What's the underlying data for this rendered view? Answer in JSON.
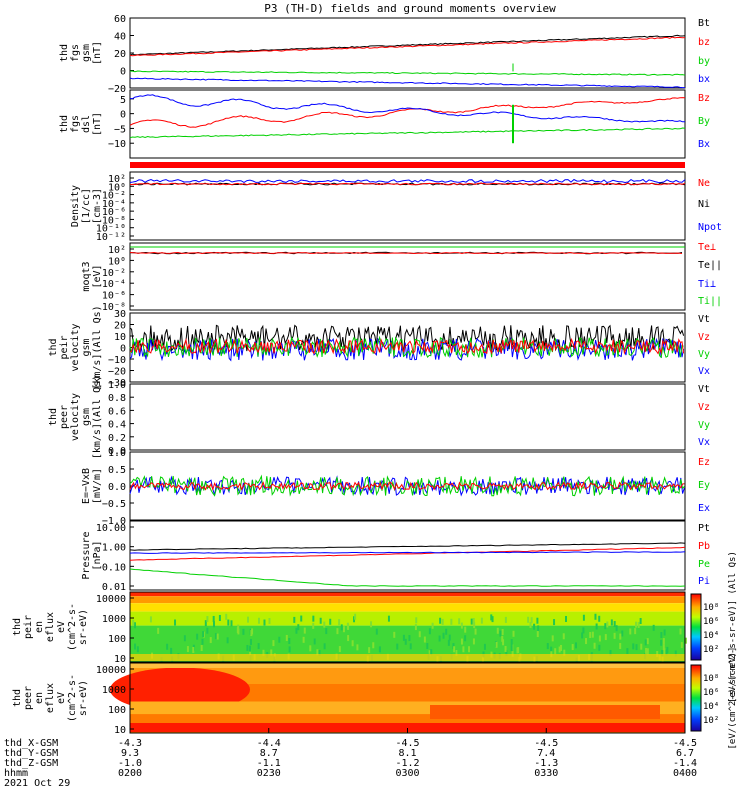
{
  "title": "P3 (TH-D) fields and ground moments overview",
  "colors": {
    "black": "#000000",
    "red": "#ff0000",
    "green": "#00d000",
    "blue": "#0000ff"
  },
  "chart_data": [
    {
      "type": "line",
      "panel": "fgs_gsm",
      "ylabel": [
        "thd",
        "fgs",
        "gsm",
        "[nT]"
      ],
      "ylim": [
        -20,
        60
      ],
      "yticks": [
        "60",
        "40",
        "20",
        "0",
        "−20"
      ],
      "ytick_values": [
        60,
        40,
        20,
        0,
        -20
      ],
      "series": [
        {
          "name": "Bt",
          "color": "black",
          "start": 18,
          "end": 40
        },
        {
          "name": "bz",
          "color": "red",
          "start": 17,
          "end": 38
        },
        {
          "name": "by",
          "color": "green",
          "start": -1,
          "end": -5
        },
        {
          "name": "bx",
          "color": "blue",
          "start": -9,
          "end": -19
        }
      ]
    },
    {
      "type": "line",
      "panel": "fgs_dsl",
      "ylabel": [
        "thd",
        "fgs",
        "dsl",
        "[nT]"
      ],
      "ylim": [
        -15,
        8
      ],
      "yticks": [
        "5",
        "0",
        "−5",
        "−10"
      ],
      "ytick_values": [
        5,
        0,
        -5,
        -10
      ],
      "series": [
        {
          "name": "Bz",
          "color": "red",
          "start": -4,
          "end": 5
        },
        {
          "name": "By",
          "color": "green",
          "start": -8,
          "end": -5
        },
        {
          "name": "Bx",
          "color": "blue",
          "start": 5,
          "end": -3
        }
      ]
    },
    {
      "type": "line",
      "panel": "density",
      "ylabel": [
        "Density",
        "[1/cc]",
        "[cm-3]"
      ],
      "scale": "log",
      "yticks": [
        "10²",
        "10⁰",
        "10⁻²",
        "10⁻⁴",
        "10⁻⁶",
        "10⁻⁸",
        "10⁻¹⁰",
        "10⁻¹²"
      ],
      "series": [
        {
          "name": "Ne",
          "color": "red"
        },
        {
          "name": "Ni",
          "color": "black"
        },
        {
          "name": "Npot",
          "color": "blue"
        }
      ]
    },
    {
      "type": "line",
      "panel": "temperature",
      "ylabel": [
        "moqt3",
        "[eV]"
      ],
      "scale": "log",
      "yticks": [
        "10²",
        "10⁰",
        "10⁻²",
        "10⁻⁴",
        "10⁻⁶",
        "10⁻⁸"
      ],
      "series": [
        {
          "name": "Te⊥",
          "color": "red"
        },
        {
          "name": "Te||",
          "color": "black"
        },
        {
          "name": "Ti⊥",
          "color": "blue"
        },
        {
          "name": "Ti||",
          "color": "green"
        }
      ]
    },
    {
      "type": "line",
      "panel": "peir_velocity",
      "ylabel": [
        "thd",
        "peir",
        "velocity",
        "gsm",
        "[km/s](All Qs)"
      ],
      "ylim": [
        -30,
        30
      ],
      "yticks": [
        "30",
        "20",
        "10",
        "0",
        "−10",
        "−20",
        "−30"
      ],
      "ytick_values": [
        30,
        20,
        10,
        0,
        -10,
        -20,
        -30
      ],
      "series": [
        {
          "name": "Vt",
          "color": "black"
        },
        {
          "name": "Vz",
          "color": "red"
        },
        {
          "name": "Vy",
          "color": "green"
        },
        {
          "name": "Vx",
          "color": "blue"
        }
      ]
    },
    {
      "type": "line",
      "panel": "peer_velocity",
      "ylabel": [
        "thd",
        "peer",
        "velocity",
        "gsm",
        "[km/s](All Qs)"
      ],
      "ylim": [
        0,
        1
      ],
      "yticks": [
        "1.0",
        "0.8",
        "0.6",
        "0.4",
        "0.2",
        "0.0"
      ],
      "ytick_values": [
        1.0,
        0.8,
        0.6,
        0.4,
        0.2,
        0.0
      ],
      "series": [
        {
          "name": "Vt",
          "color": "black"
        },
        {
          "name": "Vz",
          "color": "red"
        },
        {
          "name": "Vy",
          "color": "green"
        },
        {
          "name": "Vx",
          "color": "blue"
        }
      ]
    },
    {
      "type": "line",
      "panel": "efield",
      "ylabel": [
        "E=−VxB",
        "[mV/m]"
      ],
      "ylim": [
        -1,
        1
      ],
      "yticks": [
        "1.0",
        "0.5",
        "0.0",
        "−0.5",
        "−1.0"
      ],
      "ytick_values": [
        1,
        0.5,
        0,
        -0.5,
        -1
      ],
      "series": [
        {
          "name": "Ez",
          "color": "red"
        },
        {
          "name": "Ey",
          "color": "green"
        },
        {
          "name": "Ex",
          "color": "blue"
        }
      ]
    },
    {
      "type": "line",
      "panel": "pressure",
      "ylabel": [
        "Pressure",
        "[nPa]"
      ],
      "scale": "log",
      "yticks": [
        "10.00",
        "1.00",
        "0.10",
        "0.01"
      ],
      "series": [
        {
          "name": "Pt",
          "color": "black",
          "start": 0.55,
          "end": 1.1
        },
        {
          "name": "Pb",
          "color": "red",
          "start": 0.2,
          "end": 0.7
        },
        {
          "name": "Pe",
          "color": "green",
          "start": 0.08,
          "end": 0.015
        },
        {
          "name": "Pi",
          "color": "blue",
          "start": 0.4,
          "end": 0.45
        }
      ]
    },
    {
      "type": "heatmap",
      "panel": "peir_spec",
      "ylabel": [
        "thd",
        "peir",
        "en",
        "eflux",
        "eV",
        "(cm^2-s-",
        "sr-eV)"
      ],
      "yticks": [
        "10000",
        "1000",
        "100",
        "10"
      ],
      "colorbar": {
        "ticks": [
          "10⁸",
          "10⁶",
          "10⁴",
          "10²"
        ],
        "label": "[eV/(cm^2-s-sr-eV)] (All Qs)"
      }
    },
    {
      "type": "heatmap",
      "panel": "peer_spec",
      "ylabel": [
        "thd",
        "peer",
        "en",
        "eflux",
        "eV",
        "(cm^2-s-",
        "sr-eV)"
      ],
      "yticks": [
        "10000",
        "1000",
        "100",
        "10"
      ],
      "colorbar": {
        "ticks": [
          "10⁸",
          "10⁶",
          "10⁴",
          "10²"
        ],
        "label": "[eV/(cm^2-s-sr-eV)]"
      }
    }
  ],
  "xaxis": {
    "row_labels": [
      "thd_X-GSM",
      "thd_Y-GSM",
      "thd_Z-GSM",
      "hhmm",
      "2021 Oct 29"
    ],
    "columns": [
      {
        "x": "-4.3",
        "y": "9.3",
        "z": "-1.0",
        "t": "0200"
      },
      {
        "x": "-4.4",
        "y": "8.7",
        "z": "-1.1",
        "t": "0230"
      },
      {
        "x": "-4.5",
        "y": "8.1",
        "z": "-1.2",
        "t": "0300"
      },
      {
        "x": "-4.5",
        "y": "7.4",
        "z": "-1.3",
        "t": "0330"
      },
      {
        "x": "-4.5",
        "y": "6.7",
        "z": "-1.4",
        "t": "0400"
      }
    ]
  }
}
